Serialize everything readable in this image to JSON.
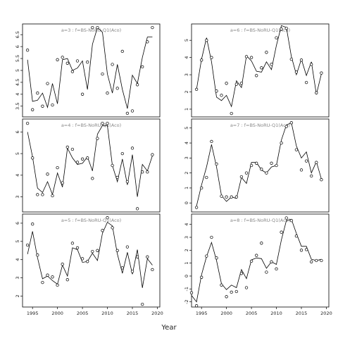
{
  "figure": {
    "xlabel": "Year"
  },
  "chart_data": [
    {
      "type": "line",
      "title": "a=3 : f=BS-NoRU-Q1(Aco)",
      "xlim": [
        1993,
        2020.5
      ],
      "ylim": [
        3.05,
        6.95
      ],
      "yticks": [
        3.5,
        4.0,
        4.5,
        5.0,
        5.5,
        6.0,
        6.5
      ],
      "xticks": [],
      "points": {
        "x": [
          1994,
          1995,
          1996,
          1997,
          1998,
          1999,
          2000,
          2001,
          2002,
          2003,
          2004,
          2005,
          2006,
          2007,
          2008,
          2009,
          2010,
          2011,
          2012,
          2013,
          2014,
          2015,
          2016,
          2017,
          2018,
          2019
        ],
        "y": [
          5.85,
          3.35,
          4.05,
          3.5,
          4.45,
          3.55,
          5.45,
          5.55,
          5.3,
          4.95,
          5.4,
          4.0,
          5.35,
          6.8,
          6.8,
          4.85,
          4.05,
          5.25,
          4.25,
          5.8,
          3.2,
          3.3,
          4.4,
          5.15,
          6.2,
          6.8
        ]
      },
      "fit": {
        "x": [
          1994,
          1995,
          1996,
          1997,
          1998,
          1999,
          2000,
          2001,
          2002,
          2003,
          2004,
          2005,
          2006,
          2007,
          2008,
          2009,
          2010,
          2011,
          2012,
          2013,
          2014,
          2015,
          2016,
          2017,
          2018,
          2019
        ],
        "y": [
          5.45,
          3.7,
          3.75,
          4.05,
          3.45,
          4.45,
          3.6,
          5.45,
          5.5,
          5.0,
          5.1,
          5.4,
          4.2,
          6.1,
          6.8,
          6.6,
          4.85,
          4.05,
          5.25,
          4.2,
          3.4,
          4.8,
          4.45,
          5.55,
          6.4,
          6.4
        ]
      }
    },
    {
      "type": "line",
      "title": "a=6 : f=BS-NoRU-Q1(Aco)",
      "xlim": [
        1993,
        2020.5
      ],
      "ylim": [
        0.55,
        5.95
      ],
      "yticks": [
        1,
        2,
        3,
        4,
        5
      ],
      "xticks": [],
      "points": {
        "x": [
          1994,
          1995,
          1996,
          1997,
          1998,
          1999,
          2000,
          2001,
          2002,
          2003,
          2004,
          2005,
          2006,
          2007,
          2008,
          2009,
          2010,
          2011,
          2012,
          2013,
          2014,
          2015,
          2016,
          2017,
          2018,
          2019
        ],
        "y": [
          2.15,
          3.85,
          5.0,
          4.0,
          2.05,
          1.8,
          2.5,
          0.75,
          2.45,
          2.5,
          4.05,
          4.0,
          2.95,
          3.4,
          4.3,
          3.6,
          5.15,
          5.65,
          5.7,
          3.9,
          3.15,
          3.85,
          2.55,
          3.6,
          1.95,
          3.1
        ]
      },
      "fit": {
        "x": [
          1994,
          1995,
          1996,
          1997,
          1998,
          1999,
          2000,
          2001,
          2002,
          2003,
          2004,
          2005,
          2006,
          2007,
          2008,
          2009,
          2010,
          2011,
          2012,
          2013,
          2014,
          2015,
          2016,
          2017,
          2018,
          2019
        ],
        "y": [
          2.15,
          3.9,
          5.15,
          3.75,
          1.7,
          1.5,
          1.8,
          1.15,
          2.65,
          2.25,
          4.1,
          3.8,
          3.2,
          3.15,
          3.75,
          3.3,
          4.7,
          5.85,
          5.75,
          4.05,
          3.0,
          3.9,
          2.95,
          3.75,
          1.85,
          3.05
        ]
      }
    },
    {
      "type": "line",
      "title": "a=4 : f=BS-NoRU-Q1(Aco)",
      "xlim": [
        1993,
        2020.5
      ],
      "ylim": [
        2.3,
        6.6
      ],
      "yticks": [
        3,
        4,
        5,
        6
      ],
      "xticks": [],
      "points": {
        "x": [
          1994,
          1995,
          1996,
          1997,
          1998,
          1999,
          2000,
          2001,
          2002,
          2003,
          2004,
          2005,
          2006,
          2007,
          2008,
          2009,
          2010,
          2011,
          2012,
          2013,
          2014,
          2015,
          2016,
          2017,
          2018,
          2019
        ],
        "y": [
          6.4,
          4.8,
          3.1,
          3.1,
          4.05,
          3.05,
          4.35,
          3.65,
          5.3,
          5.2,
          4.6,
          4.75,
          4.8,
          3.85,
          5.7,
          6.4,
          6.4,
          4.45,
          3.9,
          5.0,
          3.7,
          5.25,
          2.45,
          4.15,
          4.15,
          4.95
        ]
      },
      "fit": {
        "x": [
          1994,
          1995,
          1996,
          1997,
          1998,
          1999,
          2000,
          2001,
          2002,
          2003,
          2004,
          2005,
          2006,
          2007,
          2008,
          2009,
          2010,
          2011,
          2012,
          2013,
          2014,
          2015,
          2016,
          2017,
          2018,
          2019
        ],
        "y": [
          6.0,
          4.85,
          3.4,
          3.2,
          3.7,
          3.1,
          4.1,
          3.45,
          5.25,
          4.8,
          4.5,
          4.55,
          4.85,
          4.2,
          5.9,
          6.3,
          6.3,
          4.45,
          3.7,
          4.75,
          3.55,
          4.95,
          3.0,
          4.5,
          4.2,
          4.9
        ]
      }
    },
    {
      "type": "line",
      "title": "a=7 : f=BS-NoRU-Q1(Aco)",
      "xlim": [
        1993,
        2020.5
      ],
      "ylim": [
        -0.6,
        5.6
      ],
      "yticks": [
        0,
        1,
        2,
        3,
        4,
        5
      ],
      "xticks": [],
      "points": {
        "x": [
          1994,
          1995,
          1996,
          1997,
          1998,
          1999,
          2000,
          2001,
          2002,
          2003,
          2004,
          2005,
          2006,
          2007,
          2008,
          2009,
          2010,
          2011,
          2012,
          2013,
          2014,
          2015,
          2016,
          2017,
          2018,
          2019
        ],
        "y": [
          -0.3,
          1.0,
          1.7,
          4.1,
          2.6,
          0.45,
          0.4,
          0.4,
          0.4,
          1.75,
          2.0,
          2.5,
          2.65,
          2.25,
          2.0,
          2.65,
          2.5,
          4.0,
          5.1,
          5.35,
          3.55,
          2.2,
          2.8,
          1.8,
          2.7,
          1.55
        ]
      },
      "fit": {
        "x": [
          1994,
          1995,
          1996,
          1997,
          1998,
          1999,
          2000,
          2001,
          2002,
          2003,
          2004,
          2005,
          2006,
          2007,
          2008,
          2009,
          2010,
          2011,
          2012,
          2013,
          2014,
          2015,
          2016,
          2017,
          2018,
          2019
        ],
        "y": [
          -0.2,
          1.2,
          2.4,
          3.9,
          2.4,
          0.5,
          0.1,
          0.4,
          0.3,
          1.7,
          1.3,
          2.7,
          2.7,
          2.2,
          2.0,
          2.4,
          2.5,
          4.2,
          5.2,
          5.35,
          3.8,
          3.0,
          3.4,
          2.0,
          2.75,
          1.6
        ]
      }
    },
    {
      "type": "line",
      "title": "a=5 : f=BS-NoRU-Q1(Aco)",
      "xlim": [
        1993,
        2020.5
      ],
      "ylim": [
        1.4,
        6.5
      ],
      "yticks": [
        2,
        3,
        4,
        5,
        6
      ],
      "xticks": [
        1995,
        2000,
        2005,
        2010,
        2015,
        2020
      ],
      "points": {
        "x": [
          1994,
          1995,
          1996,
          1997,
          1998,
          1999,
          2000,
          2001,
          2002,
          2003,
          2004,
          2005,
          2006,
          2007,
          2008,
          2009,
          2010,
          2011,
          2012,
          2013,
          2014,
          2015,
          2016,
          2017,
          2018,
          2019
        ],
        "y": [
          4.8,
          5.95,
          4.25,
          2.75,
          3.15,
          3.05,
          2.6,
          3.75,
          2.9,
          4.9,
          4.65,
          4.05,
          3.9,
          4.45,
          4.5,
          5.6,
          6.3,
          5.75,
          4.5,
          3.55,
          4.7,
          3.35,
          4.15,
          1.55,
          4.15,
          3.45
        ]
      },
      "fit": {
        "x": [
          1994,
          1995,
          1996,
          1997,
          1998,
          1999,
          2000,
          2001,
          2002,
          2003,
          2004,
          2005,
          2006,
          2007,
          2008,
          2009,
          2010,
          2011,
          2012,
          2013,
          2014,
          2015,
          2016,
          2017,
          2018,
          2019
        ],
        "y": [
          4.3,
          5.55,
          4.1,
          2.95,
          3.1,
          2.85,
          2.65,
          3.7,
          3.1,
          4.65,
          4.55,
          3.85,
          3.9,
          4.35,
          3.95,
          5.45,
          6.05,
          5.85,
          4.3,
          3.25,
          4.4,
          3.2,
          4.55,
          2.45,
          4.05,
          3.7
        ]
      }
    },
    {
      "type": "line",
      "title": "a=8 : f=BS-NoRU-Q1(Aco)",
      "xlim": [
        1993,
        2020.5
      ],
      "ylim": [
        -2.4,
        4.8
      ],
      "yticks": [
        -2,
        -1,
        0,
        1,
        2,
        3,
        4
      ],
      "xticks": [
        1995,
        2000,
        2005,
        2010,
        2015,
        2020
      ],
      "points": {
        "x": [
          1993,
          1994,
          1995,
          1996,
          1997,
          1998,
          1999,
          2000,
          2001,
          2002,
          2003,
          2004,
          2005,
          2006,
          2007,
          2008,
          2009,
          2010,
          2011,
          2012,
          2013,
          2014,
          2015,
          2016,
          2017,
          2018,
          2019
        ],
        "y": [
          -1.3,
          -2.3,
          -0.1,
          1.55,
          3.0,
          1.4,
          -0.7,
          -1.6,
          -1.25,
          -1.2,
          0.2,
          -0.9,
          1.15,
          1.6,
          2.55,
          0.3,
          1.1,
          0.55,
          3.4,
          4.5,
          4.3,
          3.1,
          2.0,
          2.05,
          1.1,
          1.2,
          1.2
        ]
      },
      "fit": {
        "x": [
          1993,
          1994,
          1995,
          1996,
          1997,
          1998,
          1999,
          2000,
          2001,
          2002,
          2003,
          2004,
          2005,
          2006,
          2007,
          2008,
          2009,
          2010,
          2011,
          2012,
          2013,
          2014,
          2015,
          2016,
          2017,
          2018,
          2019
        ],
        "y": [
          -1.5,
          -2.0,
          0.1,
          1.5,
          2.6,
          1.2,
          -0.6,
          -1.05,
          -0.7,
          -0.9,
          0.5,
          -0.2,
          1.25,
          1.4,
          1.35,
          0.6,
          1.1,
          0.9,
          2.8,
          4.3,
          4.4,
          3.3,
          2.3,
          2.3,
          1.3,
          1.2,
          1.3
        ]
      }
    }
  ]
}
